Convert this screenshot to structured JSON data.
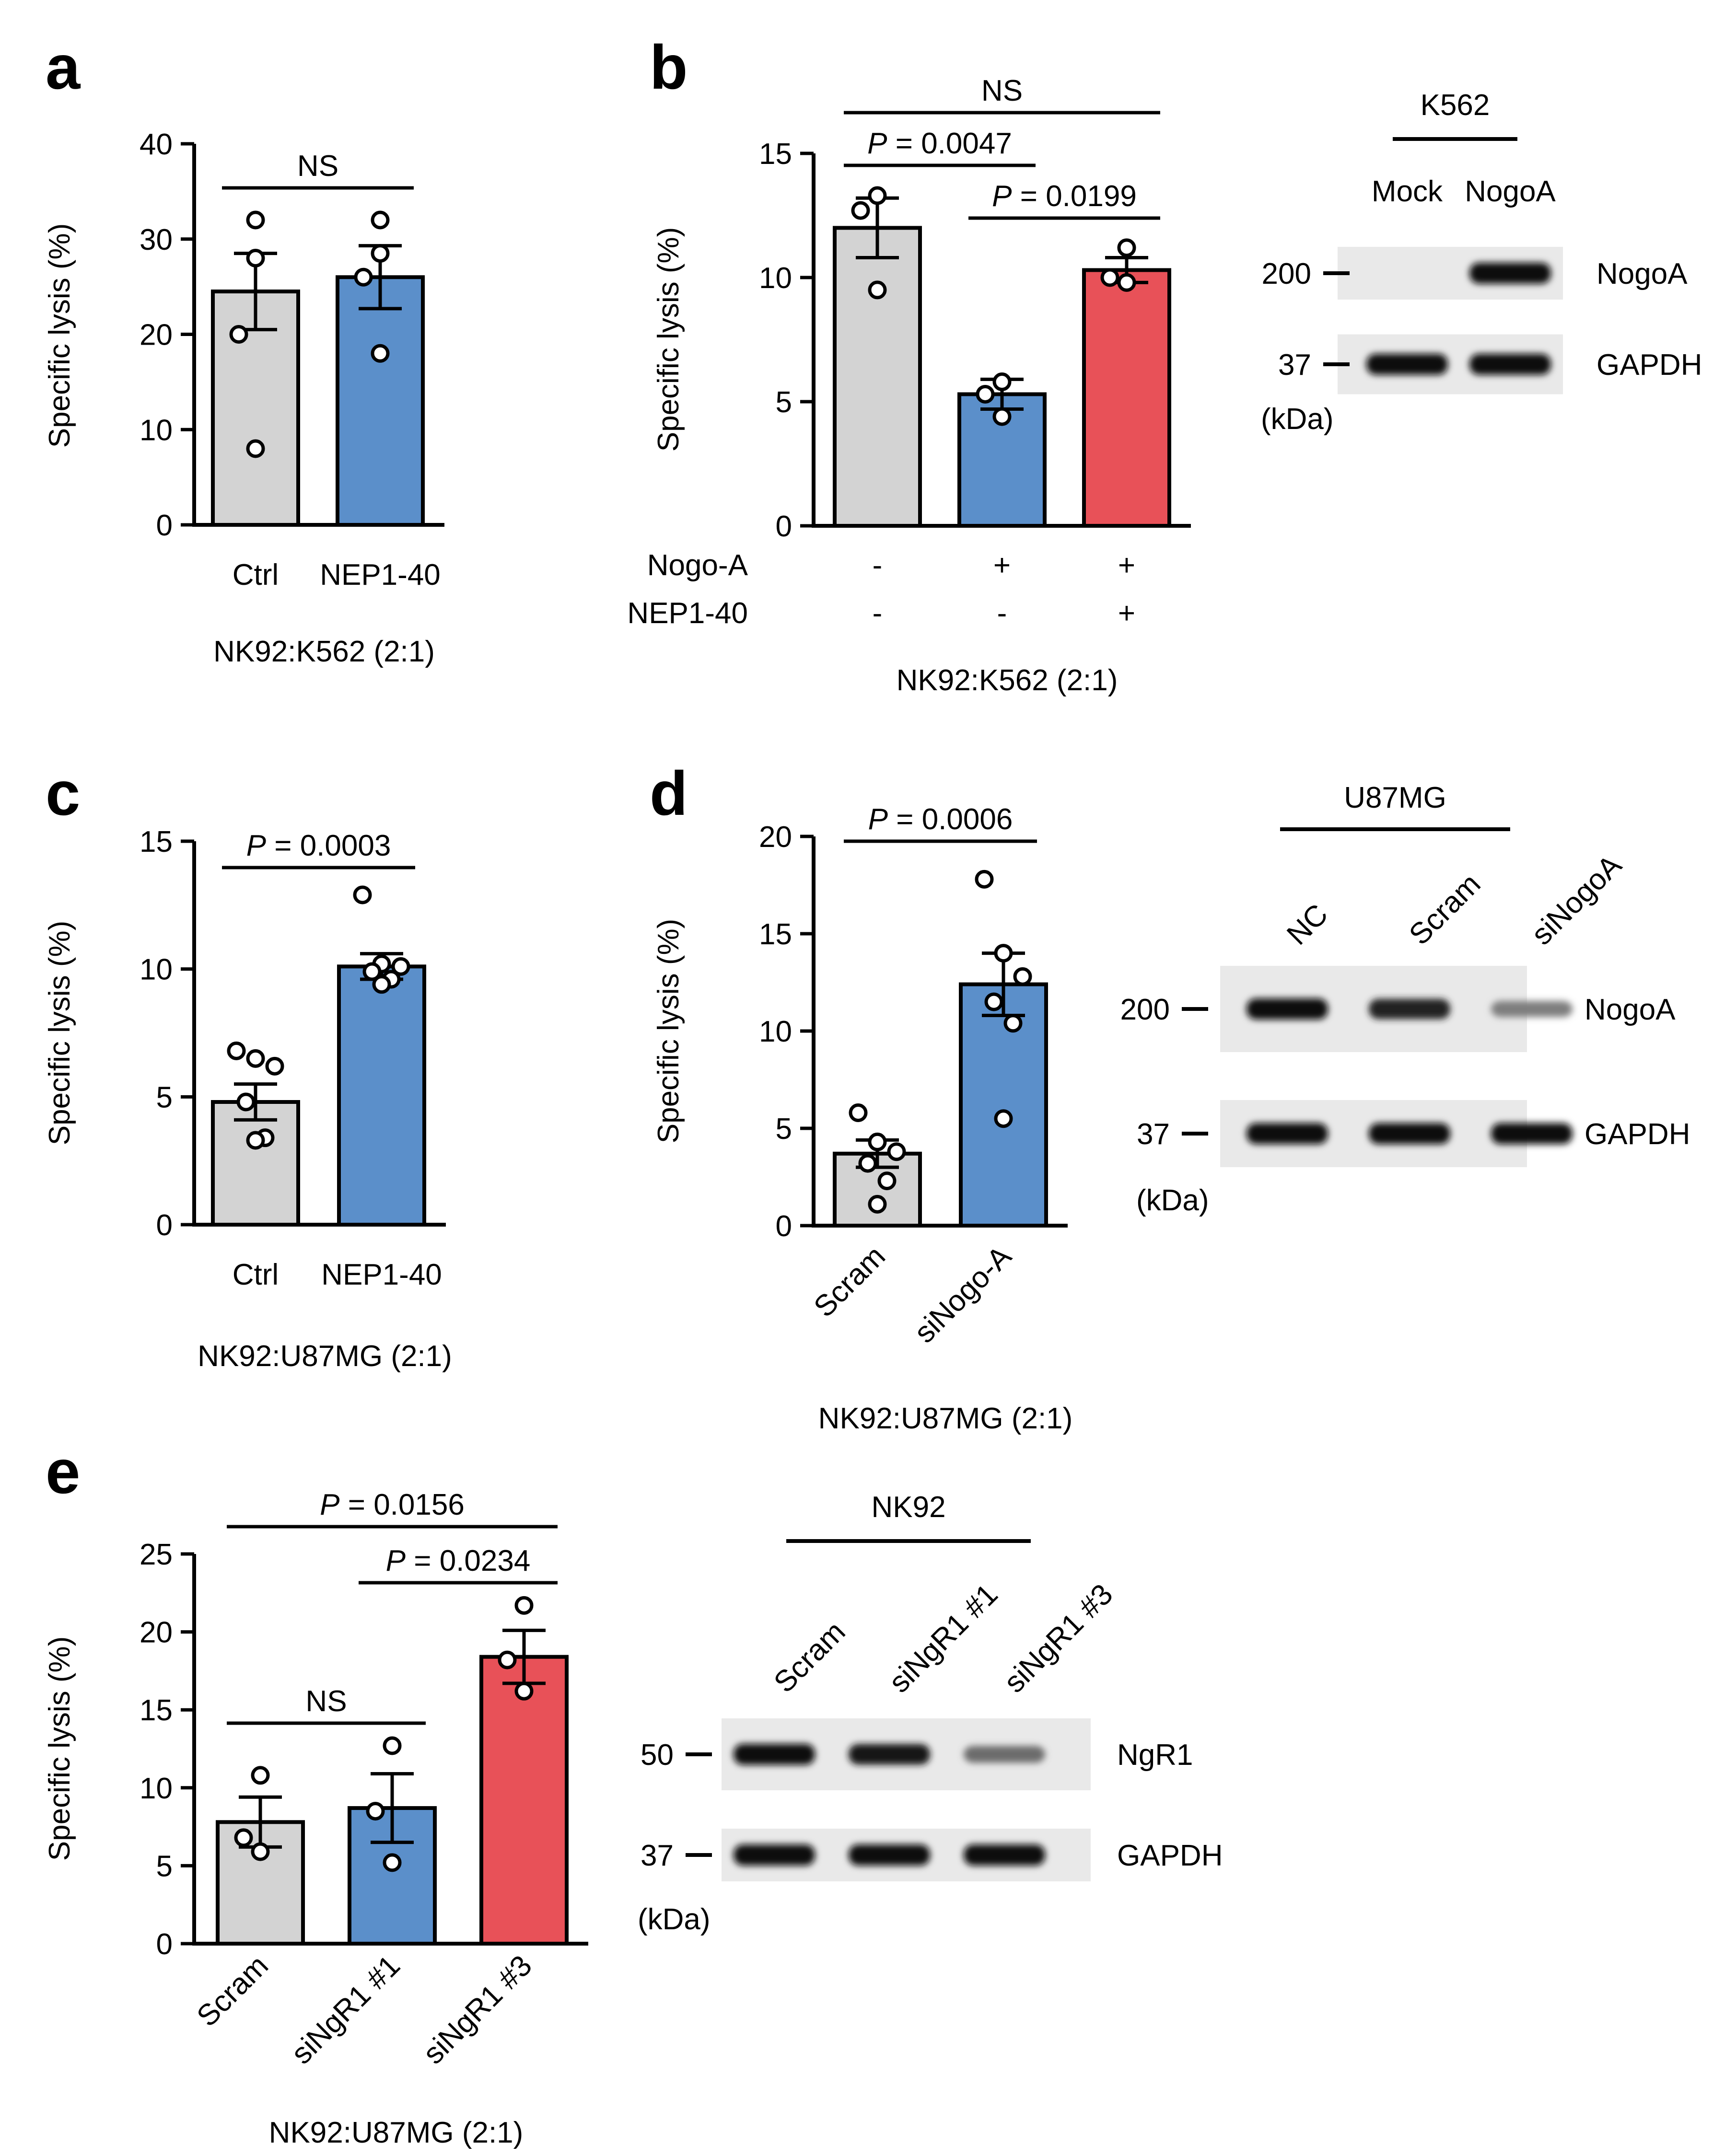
{
  "colors": {
    "grey": "#d3d3d3",
    "blue": "#5b8fca",
    "red": "#e85158",
    "axis": "#000000"
  },
  "panel_labels": [
    "a",
    "b",
    "c",
    "d",
    "e"
  ],
  "chart_data": [
    {
      "panel": "a",
      "type": "bar",
      "ylabel": "Specific lysis (%)",
      "ylim": [
        0,
        40
      ],
      "yticks": [
        0,
        10,
        20,
        30,
        40
      ],
      "categories": [
        "Ctrl",
        "NEP1-40"
      ],
      "values": [
        24.5,
        26
      ],
      "sem": [
        4,
        3.3
      ],
      "bar_colors": [
        "grey",
        "blue"
      ],
      "points": [
        [
          32,
          20,
          8,
          28
        ],
        [
          32,
          26,
          18,
          28.5
        ]
      ],
      "xtitle": "NK92:K562 (2:1)",
      "comparisons": [
        {
          "from": 0,
          "to": 1,
          "label": "NS"
        }
      ]
    },
    {
      "panel": "b",
      "type": "bar",
      "ylabel": "Specific lysis (%)",
      "ylim": [
        0,
        15
      ],
      "yticks": [
        0,
        5,
        10,
        15
      ],
      "categories": [
        "",
        "",
        ""
      ],
      "values": [
        12,
        5.3,
        10.3
      ],
      "sem": [
        1.2,
        0.6,
        0.5
      ],
      "bar_colors": [
        "grey",
        "blue",
        "red"
      ],
      "points": [
        [
          13.3,
          12.7,
          9.5
        ],
        [
          5.8,
          5.3,
          4.4
        ],
        [
          11.2,
          10,
          9.8
        ]
      ],
      "condition_rows": [
        {
          "label": "Nogo-A",
          "values": [
            "-",
            "+",
            "+"
          ]
        },
        {
          "label": "NEP1-40",
          "values": [
            "-",
            "-",
            "+"
          ]
        }
      ],
      "xtitle": "NK92:K562 (2:1)",
      "comparisons": [
        {
          "from": 0,
          "to": 2,
          "label": "NS",
          "italic_p": false
        },
        {
          "from": 0,
          "to": 1,
          "label": "P = 0.0047",
          "italic_p": true
        },
        {
          "from": 1,
          "to": 2,
          "label": "P = 0.0199",
          "italic_p": true
        }
      ]
    },
    {
      "panel": "c",
      "type": "bar",
      "ylabel": "Specific lysis (%)",
      "ylim": [
        0,
        15
      ],
      "yticks": [
        0,
        5,
        10,
        15
      ],
      "categories": [
        "Ctrl",
        "NEP1-40"
      ],
      "values": [
        4.8,
        10.1
      ],
      "sem": [
        0.7,
        0.5
      ],
      "bar_colors": [
        "grey",
        "blue"
      ],
      "points": [
        [
          6.8,
          6.5,
          6.2,
          4.8,
          3.4,
          3.3
        ],
        [
          12.9,
          10.2,
          10.1,
          9.9,
          9.6,
          9.4
        ]
      ],
      "xtitle": "NK92:U87MG (2:1)",
      "comparisons": [
        {
          "from": 0,
          "to": 1,
          "label": "P = 0.0003",
          "italic_p": true
        }
      ]
    },
    {
      "panel": "d",
      "type": "bar",
      "ylabel": "Specific lysis (%)",
      "ylim": [
        0,
        20
      ],
      "yticks": [
        0,
        5,
        10,
        15,
        20
      ],
      "categories": [
        "Scram",
        "siNogo-A"
      ],
      "categories_rotated": true,
      "values": [
        3.7,
        12.4
      ],
      "sem": [
        0.7,
        1.6
      ],
      "bar_colors": [
        "grey",
        "blue"
      ],
      "points": [
        [
          5.8,
          4.3,
          3.8,
          3.2,
          2.3,
          1.1
        ],
        [
          17.8,
          14,
          12.8,
          11.5,
          10.4,
          5.5
        ]
      ],
      "xtitle": "NK92:U87MG (2:1)",
      "comparisons": [
        {
          "from": 0,
          "to": 1,
          "label": "P = 0.0006",
          "italic_p": true
        }
      ]
    },
    {
      "panel": "e",
      "type": "bar",
      "ylabel": "Specific lysis (%)",
      "ylim": [
        0,
        25
      ],
      "yticks": [
        0,
        5,
        10,
        15,
        20,
        25
      ],
      "categories": [
        "Scram",
        "siNgR1 #1",
        "siNgR1 #3"
      ],
      "categories_rotated": true,
      "values": [
        7.8,
        8.7,
        18.4
      ],
      "sem": [
        1.6,
        2.2,
        1.7
      ],
      "bar_colors": [
        "grey",
        "blue",
        "red"
      ],
      "points": [
        [
          10.8,
          6.8,
          5.9
        ],
        [
          12.7,
          8.5,
          5.2
        ],
        [
          21.7,
          18.2,
          16.2
        ]
      ],
      "xtitle": "NK92:U87MG (2:1)",
      "comparisons": [
        {
          "from": 0,
          "to": 2,
          "label": "P = 0.0156",
          "italic_p": true
        },
        {
          "from": 1,
          "to": 2,
          "label": "P = 0.0234",
          "italic_p": true
        },
        {
          "from": 0,
          "to": 1,
          "label": "NS",
          "italic_p": false
        }
      ]
    }
  ],
  "blots": [
    {
      "panel": "b",
      "cell_line": "K562",
      "lanes": [
        "Mock",
        "NogoA"
      ],
      "lanes_rotated": false,
      "rows": [
        {
          "marker": "200",
          "protein": "NogoA",
          "intensities": [
            0,
            1.0
          ]
        },
        {
          "marker": "37",
          "protein": "GAPDH",
          "intensities": [
            1.0,
            1.0
          ]
        }
      ],
      "unit": "(kDa)"
    },
    {
      "panel": "d",
      "cell_line": "U87MG",
      "lanes": [
        "NC",
        "Scram",
        "siNogoA"
      ],
      "lanes_rotated": true,
      "rows": [
        {
          "marker": "200",
          "protein": "NogoA",
          "intensities": [
            1.0,
            0.9,
            0.4
          ]
        },
        {
          "marker": "37",
          "protein": "GAPDH",
          "intensities": [
            1.0,
            1.0,
            1.0
          ]
        }
      ],
      "unit": "(kDa)"
    },
    {
      "panel": "e",
      "cell_line": "NK92",
      "lanes": [
        "Scram",
        "siNgR1 #1",
        "siNgR1 #3"
      ],
      "lanes_rotated": true,
      "rows": [
        {
          "marker": "50",
          "protein": "NgR1",
          "intensities": [
            1.0,
            0.95,
            0.5
          ]
        },
        {
          "marker": "37",
          "protein": "GAPDH",
          "intensities": [
            1.0,
            1.0,
            1.0
          ]
        }
      ],
      "unit": "(kDa)"
    }
  ]
}
